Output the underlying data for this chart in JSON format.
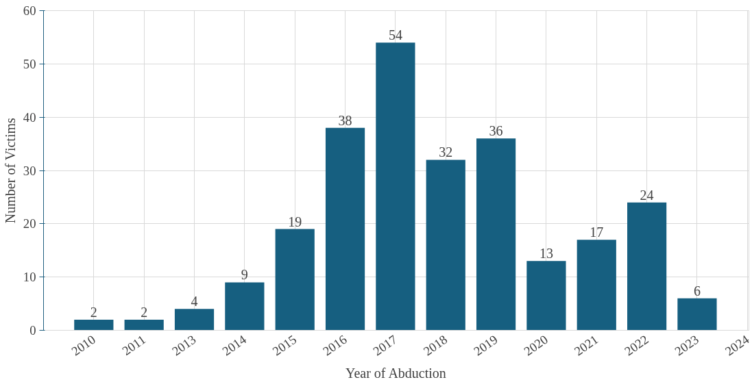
{
  "chart_data": {
    "type": "bar",
    "xlabel": "Year of Abduction",
    "ylabel": "Number of Victims",
    "categories": [
      "2010",
      "2011",
      "2013",
      "2014",
      "2015",
      "2016",
      "2017",
      "2018",
      "2019",
      "2020",
      "2021",
      "2022",
      "2023",
      "2024"
    ],
    "values": [
      2,
      2,
      4,
      9,
      19,
      38,
      54,
      32,
      36,
      13,
      17,
      24,
      6,
      null
    ],
    "color": "#165f80",
    "ylim": [
      0,
      60
    ],
    "yticks": [
      0,
      10,
      20,
      30,
      40,
      50,
      60
    ],
    "grid": true,
    "data_labels": true
  }
}
